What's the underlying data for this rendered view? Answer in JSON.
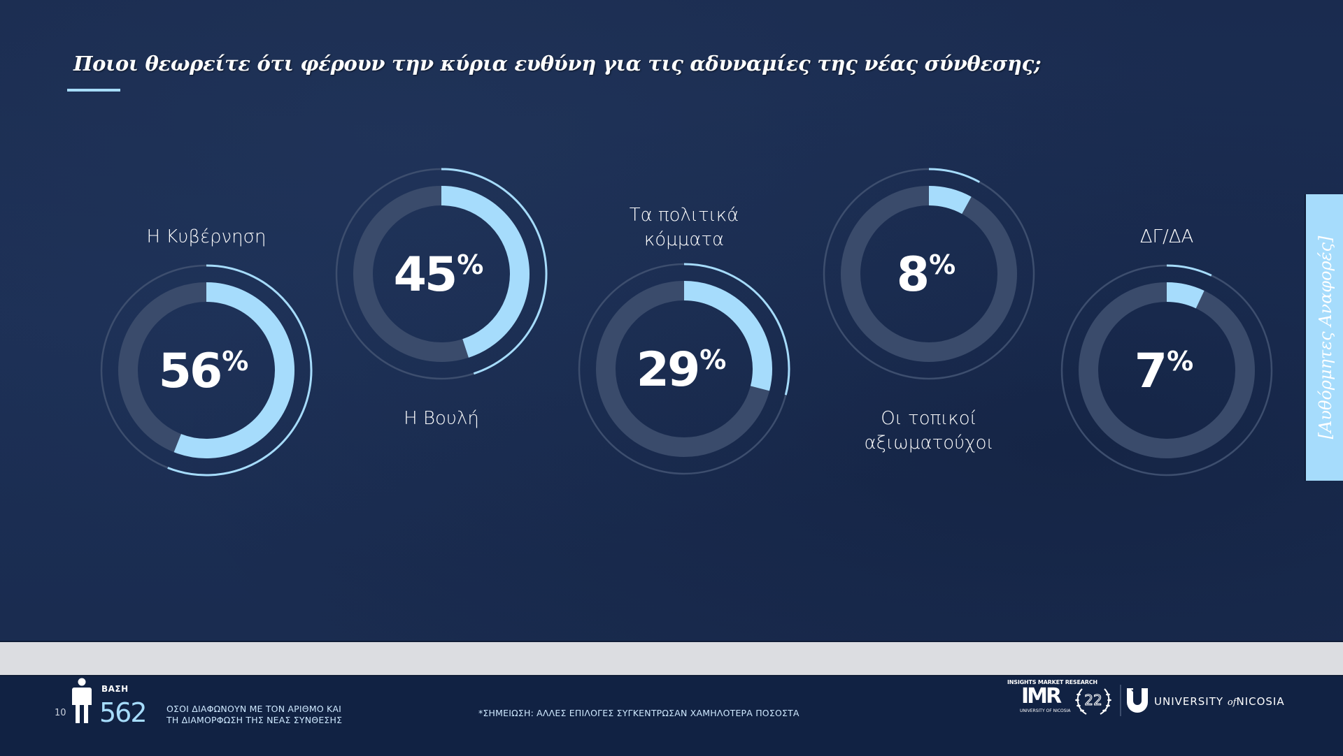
{
  "title": "Ποιοι θεωρείτε ότι φέρουν την κύρια ευθύνη για τις αδυναμίες της νέας σύνθεσης;",
  "side_tab": "[Αυθόρμητες Αναφορές]",
  "colors": {
    "background": "#1b2d51",
    "accent": "#a6dcfc",
    "track": "#3a4b6b",
    "outer_ring": "#3d4e6e",
    "band": "#dcdde1",
    "footer": "#112243"
  },
  "chart_data": {
    "type": "pie",
    "subtype": "donut-progress",
    "title": "Ποιοι θεωρείτε ότι φέρουν την κύρια ευθύνη για τις αδυναμίες της νέας σύνθεσης;",
    "unit": "%",
    "categories": [
      "Η Κυβέρνηση",
      "Η Βουλή",
      "Τα πολιτικά κόμματα",
      "Οι τοπικοί αξιωματούχοι",
      "ΔΓ/ΔΑ"
    ],
    "values": [
      56,
      45,
      29,
      8,
      7
    ],
    "items": [
      {
        "label_lines": [
          "Η Κυβέρνηση"
        ],
        "value": 56,
        "value_text": "56",
        "label_position": "above"
      },
      {
        "label_lines": [
          "Η Βουλή"
        ],
        "value": 45,
        "value_text": "45",
        "label_position": "below"
      },
      {
        "label_lines": [
          "Τα πολιτικά",
          "κόμματα"
        ],
        "value": 29,
        "value_text": "29",
        "label_position": "above"
      },
      {
        "label_lines": [
          "Οι τοπικοί",
          "αξιωματούχοι"
        ],
        "value": 8,
        "value_text": "8",
        "label_position": "below"
      },
      {
        "label_lines": [
          "ΔΓ/ΔΑ"
        ],
        "value": 7,
        "value_text": "7",
        "label_position": "above"
      }
    ],
    "percent_sign": "%"
  },
  "footer": {
    "page_number": "10",
    "base_label": "ΒΑΣΗ",
    "base_value": "562",
    "base_description_lines": [
      "ΟΣΟΙ ΔΙΑΦΩΝΟΥΝ ΜΕ ΤΟΝ ΑΡΙΘΜΟ ΚΑΙ",
      "ΤΗ ΔΙΑΜΟΡΦΩΣΗ ΤΗΣ ΝΕΑΣ ΣΥΝΘΕΣΗΣ"
    ],
    "note": "*ΣΗΜΕΙΩΣΗ: ΑΛΛΕΣ ΕΠΙΛΟΓΕΣ ΣΥΓΚΕΝΤΡΩΣΑΝ ΧΑΜΗΛΟΤΕΡΑ ΠΟΣΟΣΤΑ",
    "logos": {
      "imr_top": "INSIGHTS MARKET RESEARCH",
      "imr_main": "IMR",
      "imr_bottom": "UNIVERSITY OF NICOSIA",
      "anniversary": "22",
      "university_pre": "UNIVERSITY",
      "university_of": "of",
      "university_post": "NICOSIA"
    }
  }
}
